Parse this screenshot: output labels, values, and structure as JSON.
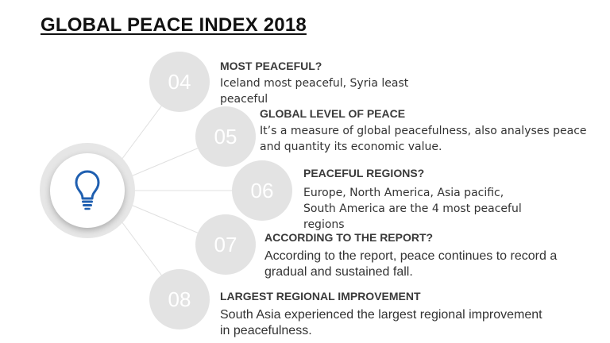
{
  "title": "GLOBAL PEACE INDEX 2018",
  "hub": {
    "icon": "lightbulb-icon",
    "accent_color": "#1f5fb0"
  },
  "items": [
    {
      "number": "04",
      "heading": "MOST PEACEFUL?",
      "body": "Iceland most peaceful, Syria least peaceful"
    },
    {
      "number": "05",
      "heading": "GLOBAL LEVEL OF PEACE",
      "body": "It’s a measure of global peacefulness, also analyses peace and quantity its economic value."
    },
    {
      "number": "06",
      "heading": "PEACEFUL REGIONS?",
      "body": "Europe, North America, Asia pacific, South America are the 4 most peaceful regions"
    },
    {
      "number": "07",
      "heading": "ACCORDING TO THE REPORT?",
      "body": "According to the report, peace continues to record a gradual and sustained fall."
    },
    {
      "number": "08",
      "heading": "LARGEST REGIONAL IMPROVEMENT",
      "body": "South Asia experienced the largest regional improvement in peacefulness."
    }
  ]
}
